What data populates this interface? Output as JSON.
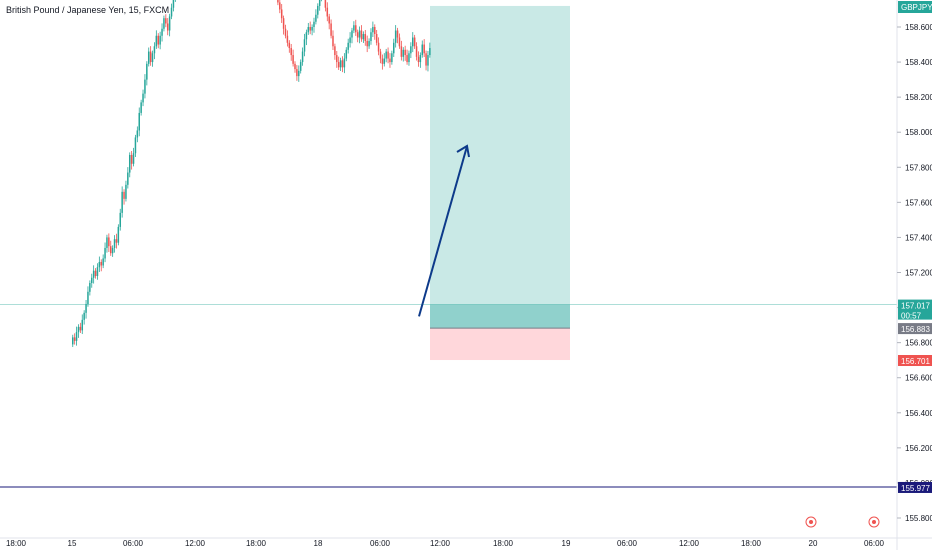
{
  "chart_data": {
    "type": "candlestick",
    "title": "British Pound / Japanese Yen, 15, FXCM",
    "symbol_badge": "GBPJPY",
    "y_ticks": [
      158.6,
      158.4,
      158.2,
      158.0,
      157.8,
      157.6,
      157.4,
      157.2,
      157.0,
      156.8,
      156.6,
      156.4,
      156.2,
      156.0,
      155.8
    ],
    "y_tick_labels": [
      "158.600",
      "158.400",
      "158.200",
      "158.000",
      "157.800",
      "157.600",
      "157.400",
      "157.200",
      "157.000",
      "156.800",
      "156.600",
      "156.400",
      "156.200",
      "156.000",
      "155.800"
    ],
    "ylim": [
      155.73,
      158.77
    ],
    "x_labels": [
      "18:00",
      "15",
      "06:00",
      "12:00",
      "18:00",
      "18",
      "06:00",
      "12:00",
      "18:00",
      "19",
      "06:00",
      "12:00",
      "18:00",
      "20",
      "06:00"
    ],
    "current_price": "157.017",
    "countdown": "00:57",
    "entry_price": "156.883",
    "stop_price": "156.701",
    "horizontal_line_price": "155.977",
    "position": {
      "type": "long",
      "entry": 156.883,
      "target": 158.72,
      "stop": 156.701
    },
    "colors": {
      "up": "#26a69a",
      "down": "#ef5350",
      "target_zone": "#b2dfdb",
      "stop_zone": "#ffcdd2",
      "arrow": "#0d3a8a",
      "hline": "#1a1a7a",
      "price_line": "#26a69a"
    },
    "candles_start": 156.79,
    "candle_moves": [
      0.04,
      -0.02,
      0.05,
      0.03,
      -0.02,
      0.06,
      0.04,
      0.05,
      0.07,
      0.05,
      0.03,
      0.04,
      -0.03,
      0.05,
      0.03,
      -0.02,
      0.04,
      0.06,
      0.06,
      -0.05,
      -0.04,
      0.03,
      0.05,
      -0.02,
      0.09,
      0.08,
      0.12,
      -0.04,
      0.08,
      0.07,
      0.1,
      -0.05,
      0.06,
      0.09,
      0.04,
      0.1,
      0.06,
      0.05,
      0.08,
      0.09,
      0.07,
      -0.06,
      0.05,
      0.04,
      0.06,
      -0.05,
      0.05,
      0.04,
      0.06,
      -0.03,
      -0.04,
      0.08,
      0.05,
      0.06,
      0.08,
      0.05,
      -0.03,
      0.04,
      -0.04,
      0.05,
      0.03,
      -0.02,
      -0.06,
      -0.04,
      0.05,
      -0.03,
      0.04,
      0.02,
      0.05,
      0.04,
      -0.06,
      0.02,
      -0.05,
      0.04,
      -0.02,
      0.03,
      0.02,
      0.04,
      -0.03,
      0.02,
      0.02,
      -0.04,
      -0.03,
      -0.02,
      0.03,
      -0.03,
      0.02,
      0.02,
      0.04,
      -0.05,
      0.03,
      0.03,
      0.04,
      0.06,
      0.02,
      0.03,
      -0.02,
      0.03,
      0.05,
      -0.04,
      -0.06,
      -0.05,
      -0.04,
      -0.05,
      -0.03,
      -0.06,
      -0.07,
      -0.05,
      -0.05,
      -0.04,
      -0.05,
      -0.06,
      -0.04,
      -0.04,
      -0.03,
      -0.04,
      -0.05,
      -0.03,
      -0.04,
      0.03,
      0.05,
      0.06,
      0.07,
      0.04,
      0.03,
      -0.02,
      0.02,
      0.03,
      0.04,
      0.05,
      0.06,
      0.02,
      -0.03,
      -0.06,
      -0.05,
      -0.04,
      -0.07,
      -0.06,
      -0.05,
      -0.04,
      -0.03,
      0.04,
      -0.04,
      0.05,
      0.05,
      0.04,
      0.03,
      0.04,
      0.03,
      -0.04,
      -0.03,
      0.04,
      -0.05,
      0.03,
      -0.04,
      -0.03,
      0.03,
      0.05,
      0.03,
      -0.04,
      -0.05,
      -0.05,
      -0.04,
      -0.03,
      0.03,
      0.04,
      -0.04,
      -0.02,
      0.05,
      0.06,
      0.07,
      -0.04,
      -0.05,
      -0.06,
      0.04,
      -0.03,
      -0.04,
      0.05,
      0.04,
      0.05,
      -0.05,
      -0.06,
      -0.03,
      0.04,
      0.06,
      -0.05,
      -0.07,
      0.06,
      0.04
    ],
    "candle_moves_note_removed": true
  }
}
